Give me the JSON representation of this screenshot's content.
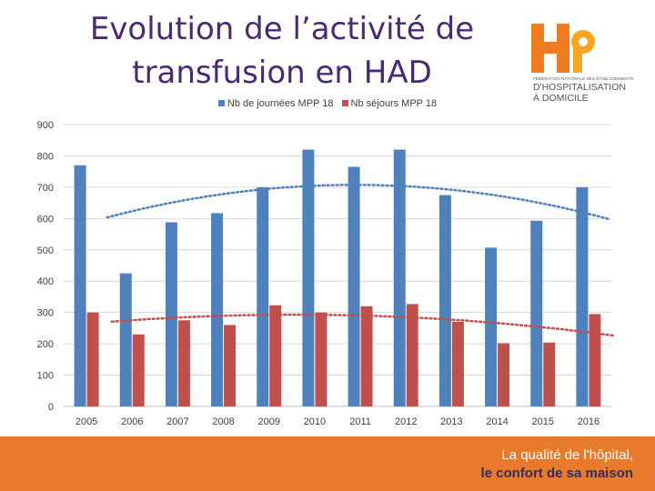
{
  "colors": {
    "series1": "#4f81bd",
    "series2": "#c0504d",
    "title": "#4a2a6e",
    "footer": "#e87a2c",
    "logo_orange": "#ee7d22",
    "logo_gold": "#f6a623"
  },
  "logo": {
    "line1": "FÉDÉRATION NATIONALE DES ÉTABLISSEMENTS",
    "line2": "D'HOSPITALISATION",
    "line3": "À DOMICILE"
  },
  "footer": {
    "tagline1": "La qualité de l'hôpital,",
    "tagline2": "le confort de sa maison"
  },
  "chart_data": {
    "type": "bar",
    "title": "Evolution de l’activité de transfusion en HAD",
    "categories": [
      "2005",
      "2006",
      "2007",
      "2008",
      "2009",
      "2010",
      "2011",
      "2012",
      "2013",
      "2014",
      "2015",
      "2016"
    ],
    "series": [
      {
        "name": "Nb de journées MPP 18",
        "values": [
          770,
          425,
          588,
          617,
          700,
          820,
          765,
          820,
          675,
          507,
          593,
          700
        ],
        "trend": "polynomial"
      },
      {
        "name": "Nb séjours MPP 18",
        "values": [
          300,
          230,
          275,
          260,
          323,
          300,
          320,
          327,
          270,
          202,
          204,
          295
        ],
        "trend": "polynomial"
      }
    ],
    "ylim": [
      0,
      900
    ],
    "yticks": [
      0,
      100,
      200,
      300,
      400,
      500,
      600,
      700,
      800,
      900
    ],
    "grid": true,
    "legend": "top",
    "xlabel": "",
    "ylabel": ""
  }
}
